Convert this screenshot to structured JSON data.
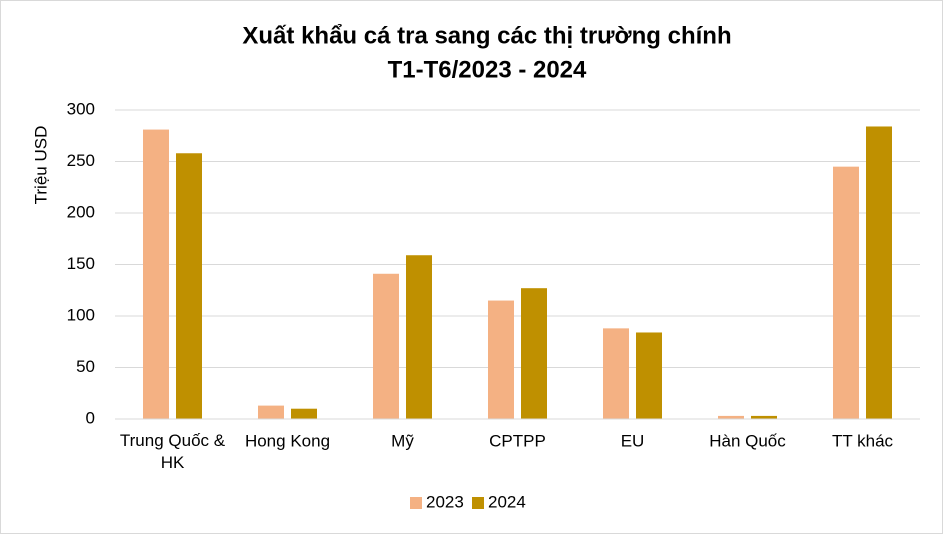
{
  "chart_data": {
    "type": "bar",
    "title": [
      "Xuất khẩu cá tra sang các thị trường chính",
      "T1-T6/2023 - 2024"
    ],
    "y_label": "Triệu USD",
    "categories": [
      "Trung Quốc & HK",
      "Hong Kong",
      "Mỹ",
      "CPTPP",
      "EU",
      "Hàn Quốc",
      "TT khác"
    ],
    "series": [
      {
        "name": "2023",
        "color": "#f4b183",
        "values": [
          281,
          13,
          141,
          115,
          88,
          3,
          245
        ]
      },
      {
        "name": "2024",
        "color": "#bf9000",
        "values": [
          258,
          10,
          159,
          127,
          84,
          3,
          284
        ]
      }
    ],
    "ylim": [
      0,
      300
    ],
    "yticks": [
      0,
      50,
      100,
      150,
      200,
      250,
      300
    ],
    "grid": true,
    "legend": "bottom"
  }
}
